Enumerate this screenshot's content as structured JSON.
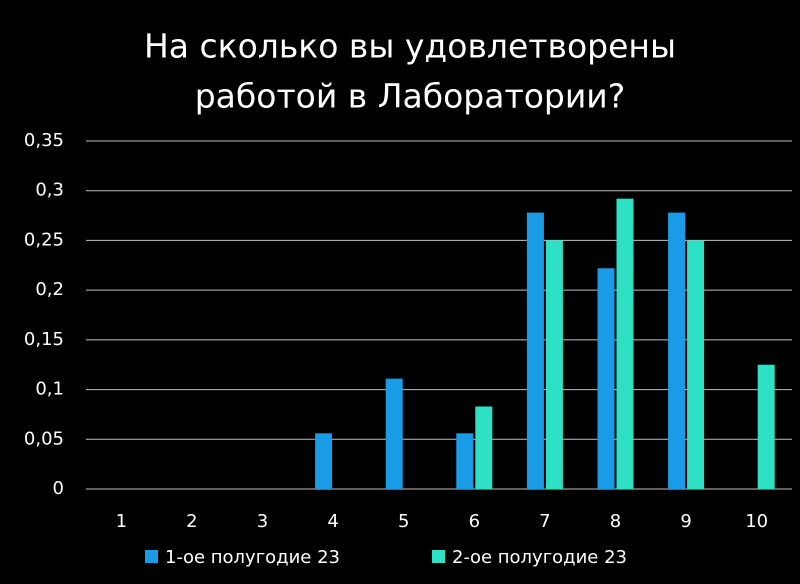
{
  "chart_data": {
    "type": "bar",
    "title": [
      "На сколько вы удовлетворены",
      "работой в Лаборатории?"
    ],
    "categories": [
      "1",
      "2",
      "3",
      "4",
      "5",
      "6",
      "7",
      "8",
      "9",
      "10"
    ],
    "series": [
      {
        "name": "1-ое полугодие 23",
        "color": "#1a9be6",
        "values": [
          0,
          0,
          0,
          0.056,
          0.111,
          0.056,
          0.278,
          0.222,
          0.278,
          0
        ]
      },
      {
        "name": "2-ое полугодие 23",
        "color": "#2ee0c4",
        "values": [
          0,
          0,
          0,
          0,
          0,
          0.083,
          0.25,
          0.292,
          0.25,
          0.125
        ]
      }
    ],
    "ylim": [
      0,
      0.35
    ],
    "yticks": [
      0,
      {
        "value": 0.05,
        "label": "0,05"
      },
      {
        "value": 0.1,
        "label": "0,1"
      },
      {
        "value": 0.15,
        "label": "0,15"
      },
      {
        "value": 0.2,
        "label": "0,2"
      },
      {
        "value": 0.25,
        "label": "0,25"
      },
      {
        "value": 0.3,
        "label": "0,3"
      },
      {
        "value": 0.35,
        "label": "0,35"
      }
    ],
    "grid": true
  }
}
